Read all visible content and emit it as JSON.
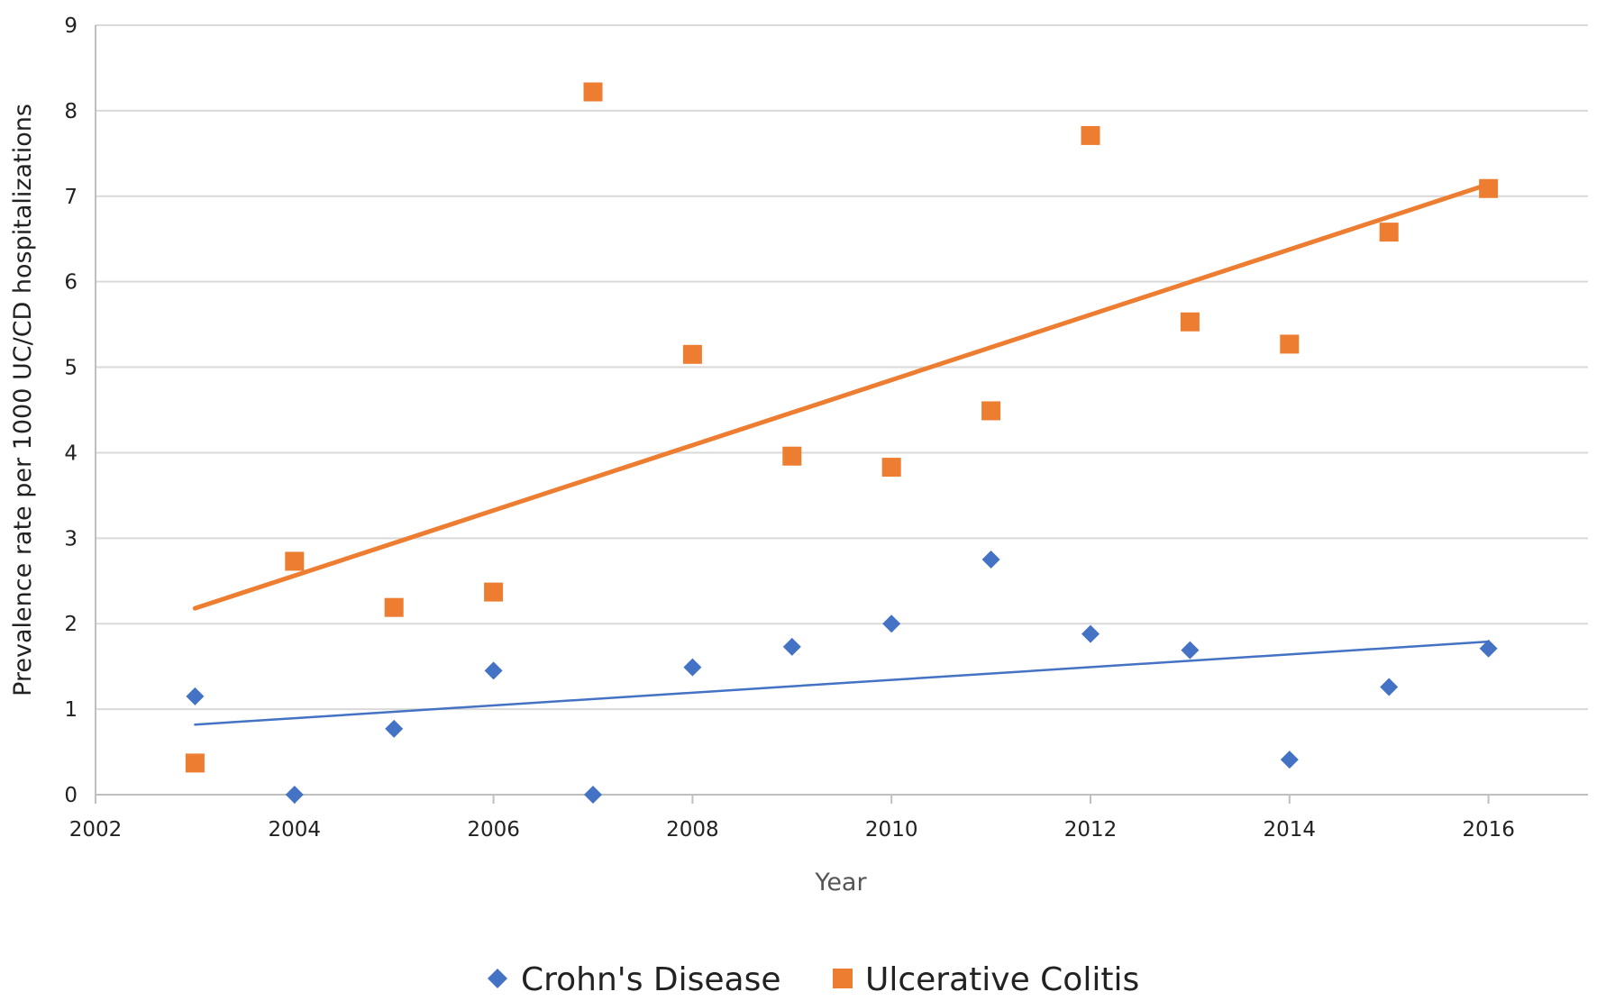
{
  "chart_data": {
    "type": "scatter",
    "title": "",
    "xlabel": "Year",
    "ylabel": "Prevalence rate per 1000 UC/CD hospitalizations",
    "xlim": [
      2002,
      2017
    ],
    "ylim": [
      0,
      9
    ],
    "xticks": [
      2002,
      2004,
      2006,
      2008,
      2010,
      2012,
      2014,
      2016
    ],
    "yticks": [
      0,
      1,
      2,
      3,
      4,
      5,
      6,
      7,
      8,
      9
    ],
    "grid": "horizontal",
    "legend_position": "bottom",
    "series": [
      {
        "name": "Crohn's Disease",
        "marker": "diamond",
        "color": "#4472C4",
        "x": [
          2003,
          2004,
          2005,
          2006,
          2007,
          2008,
          2009,
          2010,
          2011,
          2012,
          2013,
          2014,
          2015,
          2016
        ],
        "y": [
          1.15,
          0.0,
          0.77,
          1.45,
          0.0,
          1.49,
          1.73,
          2.0,
          2.75,
          1.88,
          1.69,
          0.41,
          1.26,
          1.71
        ],
        "trendline": {
          "x": [
            2003,
            2016
          ],
          "y": [
            0.82,
            1.79
          ]
        }
      },
      {
        "name": "Ulcerative Colitis",
        "marker": "square",
        "color": "#ED7D31",
        "x": [
          2003,
          2004,
          2005,
          2006,
          2007,
          2008,
          2009,
          2010,
          2011,
          2012,
          2013,
          2014,
          2015,
          2016
        ],
        "y": [
          0.37,
          2.73,
          2.19,
          2.37,
          8.22,
          5.15,
          3.96,
          3.83,
          4.49,
          7.71,
          5.53,
          5.27,
          6.58,
          7.09
        ],
        "trendline": {
          "x": [
            2003,
            2016
          ],
          "y": [
            2.18,
            7.14
          ]
        }
      }
    ]
  }
}
